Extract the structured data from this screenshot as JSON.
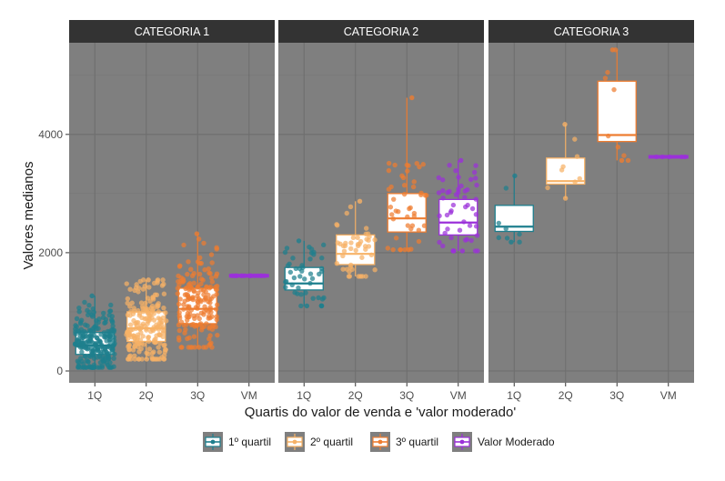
{
  "chart_data": {
    "type": "boxplot",
    "xlabel": "Quartis do valor de venda e 'valor moderado'",
    "ylabel": "Valores medianos",
    "ylim": [
      -200,
      5550
    ],
    "yticks": [
      0,
      2000,
      4000
    ],
    "ytick_labels": [
      "0",
      "2000",
      "4000"
    ],
    "categories": [
      "1Q",
      "2Q",
      "3Q",
      "VM"
    ],
    "grid": true,
    "legend_position": "bottom",
    "colors": {
      "panel_bg": "#7f7f7f",
      "strip_bg": "#333333",
      "grid": "#6e6e6e",
      "box_fill": "#ffffff"
    },
    "series": [
      {
        "name": "1º quartil",
        "color": "#1e7f8e"
      },
      {
        "name": "2º quartil",
        "color": "#f7b267"
      },
      {
        "name": "3º quartil",
        "color": "#ee7d31"
      },
      {
        "name": "Valor Moderado",
        "color": "#9b30d9"
      }
    ],
    "panels": [
      {
        "title": "CATEGORIA 1",
        "boxes": [
          {
            "category": "1Q",
            "min": 60,
            "q1": 280,
            "median": 430,
            "q3": 650,
            "max": 1270,
            "n_points": 240
          },
          {
            "category": "2Q",
            "min": 200,
            "q1": 500,
            "median": 720,
            "q3": 1000,
            "max": 1540,
            "n_points": 200
          },
          {
            "category": "3Q",
            "min": 400,
            "q1": 800,
            "median": 1050,
            "q3": 1400,
            "max": 2320,
            "n_points": 180
          },
          {
            "category": "VM",
            "min": 1610,
            "q1": 1610,
            "median": 1610,
            "q3": 1610,
            "max": 1610,
            "n_points": 15
          }
        ]
      },
      {
        "title": "CATEGORIA 2",
        "boxes": [
          {
            "category": "1Q",
            "min": 1100,
            "q1": 1370,
            "median": 1480,
            "q3": 1750,
            "max": 2200,
            "n_points": 45
          },
          {
            "category": "2Q",
            "min": 1600,
            "q1": 1800,
            "median": 1980,
            "q3": 2300,
            "max": 2870,
            "n_points": 45
          },
          {
            "category": "3Q",
            "min": 2050,
            "q1": 2350,
            "median": 2580,
            "q3": 3000,
            "max": 4620,
            "n_points": 45
          },
          {
            "category": "VM",
            "min": 2030,
            "q1": 2300,
            "median": 2510,
            "q3": 2900,
            "max": 3560,
            "n_points": 50
          }
        ]
      },
      {
        "title": "CATEGORIA 3",
        "boxes": [
          {
            "category": "1Q",
            "min": 2180,
            "q1": 2360,
            "median": 2440,
            "q3": 2800,
            "max": 3300,
            "n_points": 7
          },
          {
            "category": "2Q",
            "min": 2920,
            "q1": 3160,
            "median": 3210,
            "q3": 3600,
            "max": 4170,
            "n_points": 7
          },
          {
            "category": "3Q",
            "min": 3560,
            "q1": 3880,
            "median": 3990,
            "q3": 4900,
            "max": 5430,
            "n_points": 8
          },
          {
            "category": "VM",
            "min": 3620,
            "q1": 3620,
            "median": 3620,
            "q3": 3620,
            "max": 3620,
            "n_points": 5
          }
        ]
      }
    ]
  }
}
